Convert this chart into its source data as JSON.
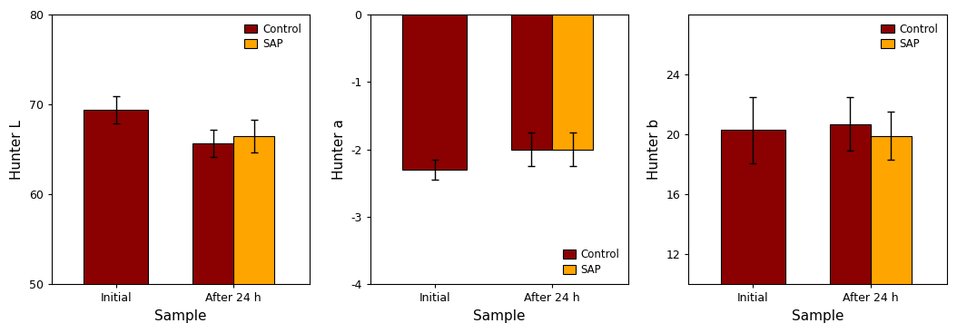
{
  "chart1": {
    "ylabel": "Hunter L",
    "xlabel": "Sample",
    "ylim": [
      50,
      80
    ],
    "yticks": [
      50,
      60,
      70,
      80
    ],
    "categories": [
      "Initial",
      "After 24 h"
    ],
    "control_values": [
      69.4,
      65.7
    ],
    "sap_values": [
      null,
      66.5
    ],
    "control_errors": [
      1.5,
      1.5
    ],
    "sap_errors": [
      null,
      1.8
    ],
    "legend_loc": "upper right"
  },
  "chart2": {
    "ylabel": "Hunter a",
    "xlabel": "Sample",
    "ylim": [
      -4,
      0
    ],
    "yticks": [
      0,
      -1,
      -2,
      -3,
      -4
    ],
    "categories": [
      "Initial",
      "After 24 h"
    ],
    "control_values": [
      -2.3,
      -2.0
    ],
    "sap_values": [
      null,
      -2.0
    ],
    "control_errors": [
      0.15,
      0.25
    ],
    "sap_errors": [
      null,
      0.25
    ],
    "legend_loc": "lower right"
  },
  "chart3": {
    "ylabel": "Hunter b",
    "xlabel": "Sample",
    "ylim": [
      10,
      28
    ],
    "yticks": [
      12,
      16,
      20,
      24
    ],
    "categories": [
      "Initial",
      "After 24 h"
    ],
    "control_values": [
      20.3,
      20.7
    ],
    "sap_values": [
      null,
      19.9
    ],
    "control_errors": [
      2.2,
      1.8
    ],
    "sap_errors": [
      null,
      1.6
    ],
    "legend_loc": "upper right"
  },
  "control_color": "#8B0000",
  "sap_color": "#FFA500",
  "single_bar_width": 0.55,
  "pair_bar_width": 0.35,
  "edge_color": "black",
  "edge_linewidth": 0.8,
  "error_capsize": 3,
  "error_color": "black",
  "error_linewidth": 1.0,
  "legend_labels": [
    "Control",
    "SAP"
  ],
  "tick_fontsize": 9,
  "label_fontsize": 11,
  "legend_fontsize": 8.5
}
